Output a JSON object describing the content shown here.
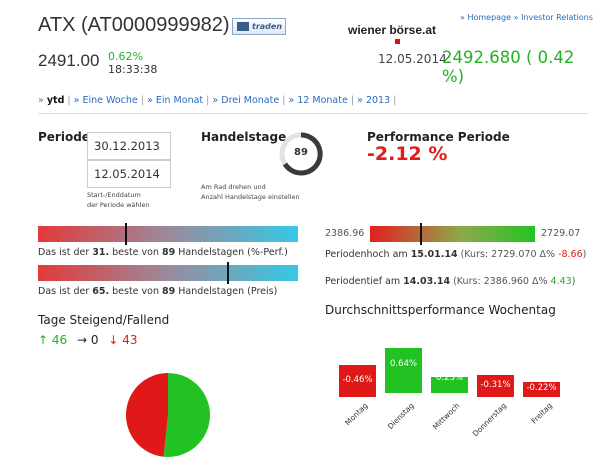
{
  "header": {
    "title": "ATX (AT0000999982)",
    "trade_button": "traden",
    "price": "2491.00",
    "change_pct": "0.62%",
    "time": "18:33:38"
  },
  "wbag": {
    "logo_text": "wiener börse.at",
    "nav_separator": "»",
    "links": [
      "Homepage",
      "Investor Relations"
    ],
    "quote_date": "12.05.2014:",
    "quote_value": "2492.680 ( 0.42 %)"
  },
  "periods": {
    "items": [
      {
        "label": "ytd",
        "active": true
      },
      {
        "label": "Eine Woche",
        "active": false
      },
      {
        "label": "Ein Monat",
        "active": false
      },
      {
        "label": "Drei Monate",
        "active": false
      },
      {
        "label": "12 Monate",
        "active": false
      },
      {
        "label": "2013",
        "active": false
      }
    ]
  },
  "periode": {
    "label": "Periode",
    "start_date": "30.12.2013",
    "end_date": "12.05.2014",
    "hint_line1": "Start-/Enddatum",
    "hint_line2": "der Periode wählen"
  },
  "handelstage": {
    "label": "Handelstage",
    "value": "89",
    "hint_line1": "Am Rad drehen und",
    "hint_line2": "Anzahl Handelstage einstellen"
  },
  "performance": {
    "label": "Performance Periode",
    "value": "-2.12 %"
  },
  "rank_perf": {
    "position": 0.34,
    "prefix": "Das ist der ",
    "rank": "31.",
    "middle": " beste von ",
    "total": "89",
    "suffix": " Handelstagen (%-Perf.)"
  },
  "rank_price": {
    "position": 0.73,
    "prefix": "Das ist der ",
    "rank": "65.",
    "middle": " beste von ",
    "total": "89",
    "suffix": " Handelstagen (Preis)"
  },
  "range": {
    "low": "2386.96",
    "high": "2729.07",
    "position": 0.31,
    "high_text_prefix": "Periodenhoch am ",
    "high_date": "15.01.14",
    "high_detail": " (Kurs: 2729.070 Δ% ",
    "high_delta": "-8.66",
    "close_paren": ")",
    "low_text_prefix": "Periodentief am ",
    "low_date": "14.03.14",
    "low_detail": " (Kurs: 2386.960 Δ% ",
    "low_delta": "4.43"
  },
  "updown": {
    "title": "Tage Steigend/Fallend",
    "up_arrow": "↑",
    "up": "46",
    "flat_arrow": "→",
    "flat": "0",
    "down_arrow": "↓",
    "down": "43",
    "colors": {
      "up": "#22c222",
      "down": "#e01818"
    }
  },
  "weekday": {
    "title": "Durchschnittsperformance Wochentag",
    "colors": {
      "positive": "#22c222",
      "negative": "#e01818"
    }
  },
  "chart_data": {
    "type": "bar",
    "title": "Durchschnittsperformance Wochentag",
    "categories": [
      "Montag",
      "Dienstag",
      "Mittwoch",
      "Donnerstag",
      "Freitag"
    ],
    "values": [
      -0.46,
      0.64,
      0.23,
      -0.31,
      -0.22
    ],
    "labels": [
      "-0.46%",
      "0.64%",
      "0.23%",
      "-0.31%",
      "-0.22%"
    ]
  },
  "pie_data": {
    "type": "pie",
    "categories": [
      "Steigend",
      "Fallend"
    ],
    "values": [
      46,
      43
    ]
  }
}
